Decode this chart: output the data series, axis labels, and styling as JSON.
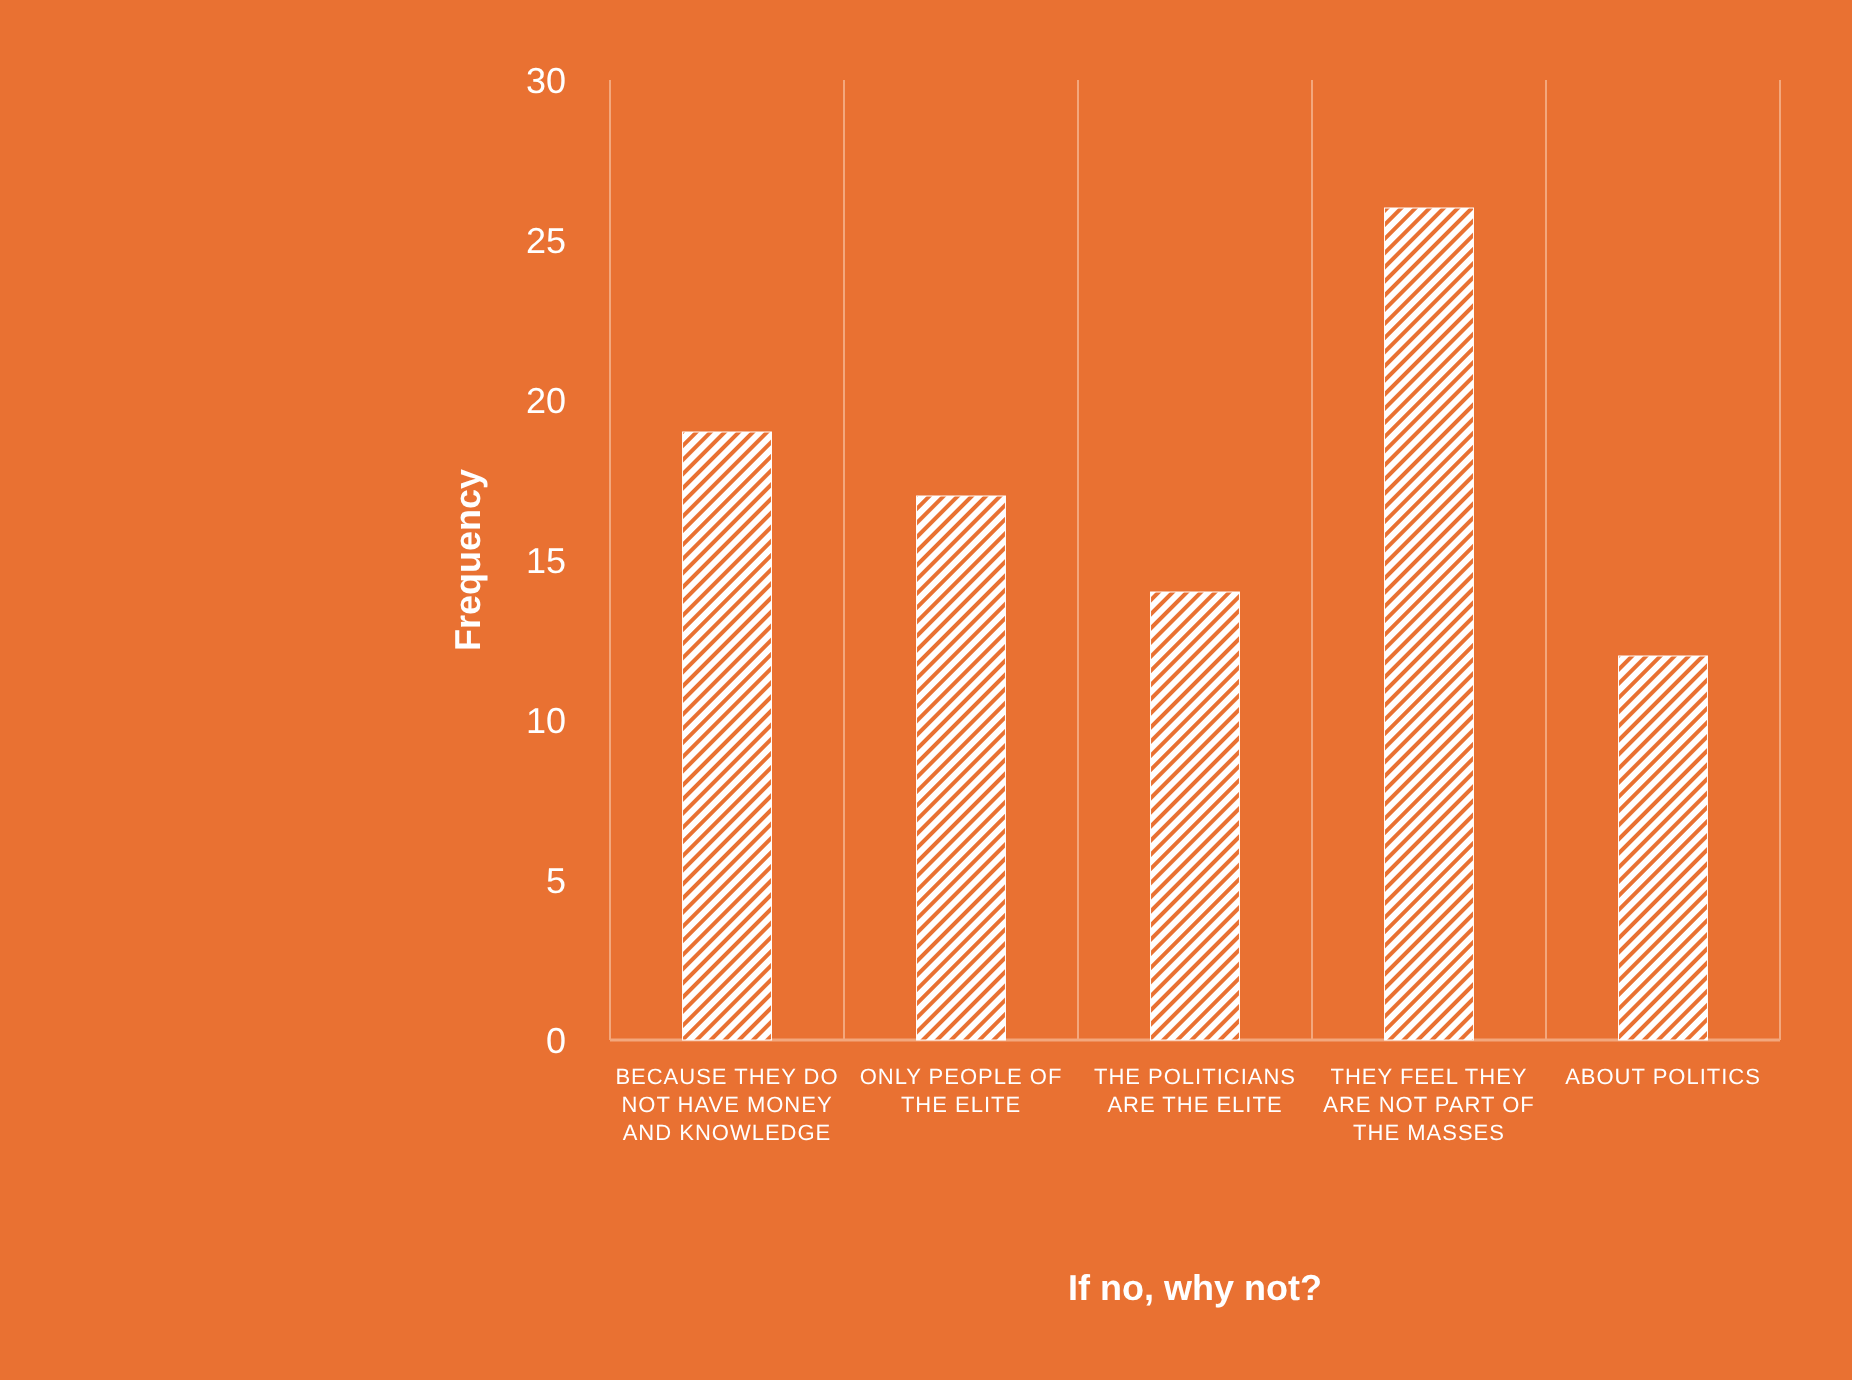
{
  "chart_data": {
    "type": "bar",
    "xlabel": "If no, why not?",
    "ylabel": "Frequency",
    "categories": [
      "BECAUSE THEY DO NOT HAVE MONEY AND KNOWLEDGE",
      "ONLY PEOPLE OF THE ELITE",
      "THE POLITICIANS ARE THE ELITE",
      "THEY FEEL THEY ARE NOT PART OF THE MASSES",
      "ABOUT POLITICS"
    ],
    "values": [
      19,
      17,
      14,
      26,
      12
    ],
    "color": "#ffffff",
    "ylim": [
      0,
      30
    ],
    "yticks": [
      0,
      5,
      10,
      15,
      20,
      25,
      30
    ],
    "grid": "x"
  }
}
